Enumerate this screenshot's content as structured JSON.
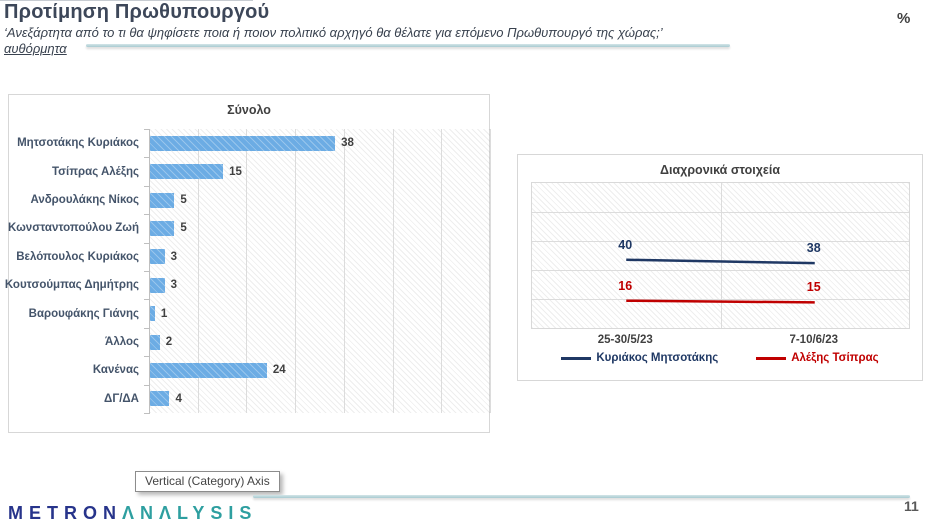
{
  "header": {
    "title": "Προτίμηση Πρωθυπουργού",
    "subtitle": "‘Ανεξάρτητα από το τι θα ψηφίσετε ποια ή ποιον πολιτικό αρχηγό θα θέλατε για επόμενο Πρωθυπουργό της χώρας;’",
    "subtitle_note": "αυθόρμητα",
    "unit_label": "%"
  },
  "chart_data": [
    {
      "type": "bar",
      "orientation": "horizontal",
      "title": "Σύνολο",
      "categories": [
        "Μητσοτάκης Κυριάκος",
        "Τσίπρας Αλέξης",
        "Ανδρουλάκης Νίκος",
        "Κωνσταντοπούλου Ζωή",
        "Βελόπουλος Κυριάκος",
        "Κουτσούμπας Δημήτρης",
        "Βαρουφάκης Γιάνης",
        "Άλλος",
        "Κανένας",
        "ΔΓ/ΔΑ"
      ],
      "values": [
        38,
        15,
        5,
        5,
        3,
        3,
        1,
        2,
        24,
        4
      ],
      "xlim": [
        0,
        70
      ],
      "gridline_step": 10,
      "grid": true,
      "bar_color": "#6cace4",
      "plot_background": "diagonal-hatch"
    },
    {
      "type": "line",
      "title": "Διαχρονικά στοιχεία",
      "categories": [
        "25-30/5/23",
        "7-10/6/23"
      ],
      "series": [
        {
          "name": "Κυριάκος Μητσοτάκης",
          "values": [
            40,
            38
          ],
          "color": "#1f3864"
        },
        {
          "name": "Αλέξης Τσίπρας",
          "values": [
            16,
            15
          ],
          "color": "#c00000"
        }
      ],
      "ylim": [
        0,
        85
      ],
      "y_gridline_rows": 5,
      "grid": true,
      "legend_position": "bottom",
      "plot_background": "diagonal-hatch"
    }
  ],
  "tooltip": {
    "text": "Vertical (Category) Axis"
  },
  "footer": {
    "logo_part1": "METRON",
    "logo_part2": "ΛNΛLYSIS",
    "page_number": "11"
  },
  "colors": {
    "bar_blue": "#6cace4",
    "series_navy": "#1f3864",
    "series_red": "#c00000",
    "teal_rule": "#a8cbd1",
    "logo_navy": "#27348b",
    "logo_teal": "#2e9fa0"
  }
}
